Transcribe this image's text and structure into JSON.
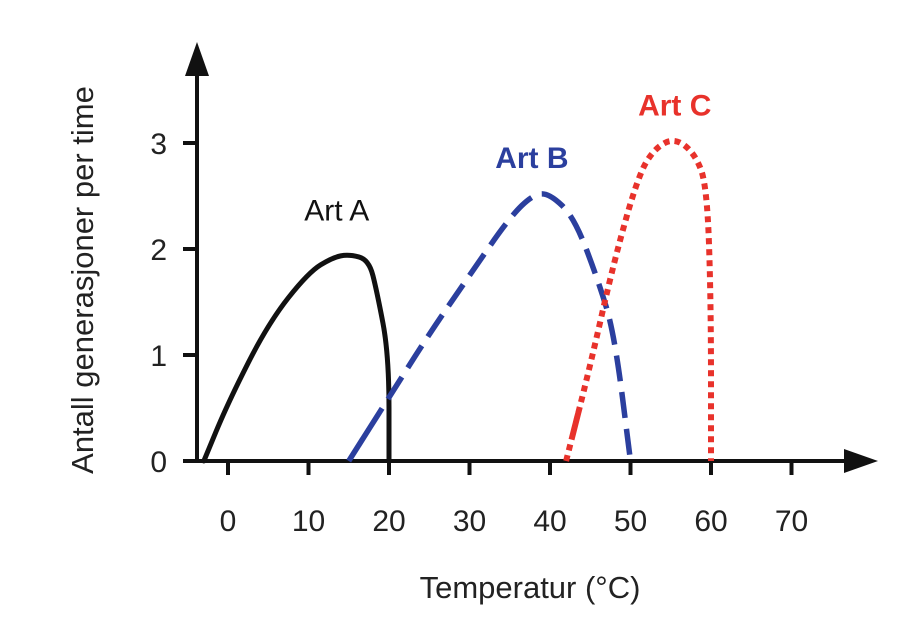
{
  "chart_data": {
    "type": "line",
    "xlabel": "Temperatur (°C)",
    "ylabel": "Antall generasjoner per time",
    "xlim": [
      -5,
      80
    ],
    "ylim": [
      0,
      3.6
    ],
    "xticks": [
      0,
      10,
      20,
      30,
      40,
      50,
      60,
      70
    ],
    "yticks": [
      0,
      1,
      2,
      3
    ],
    "grid": false,
    "series": [
      {
        "name": "Art A",
        "color": "#111111",
        "style": "solid",
        "points": [
          [
            -3,
            0
          ],
          [
            0,
            0.55
          ],
          [
            5,
            1.3
          ],
          [
            10,
            1.78
          ],
          [
            13,
            1.92
          ],
          [
            15,
            1.95
          ],
          [
            17.5,
            1.9
          ],
          [
            18.5,
            1.6
          ],
          [
            20,
            1.0
          ],
          [
            20,
            0
          ]
        ]
      },
      {
        "name": "Art B",
        "color": "#2b3f9e",
        "style": "dashed",
        "points": [
          [
            15,
            0
          ],
          [
            20,
            0.6
          ],
          [
            25,
            1.2
          ],
          [
            30,
            1.75
          ],
          [
            35,
            2.3
          ],
          [
            38,
            2.52
          ],
          [
            40,
            2.52
          ],
          [
            43,
            2.3
          ],
          [
            46,
            1.7
          ],
          [
            48,
            1.2
          ],
          [
            50,
            0
          ]
        ]
      },
      {
        "name": "Art C",
        "color": "#e8322b",
        "style": "dotted",
        "points": [
          [
            42,
            0
          ],
          [
            45,
            0.9
          ],
          [
            48,
            1.9
          ],
          [
            51,
            2.7
          ],
          [
            53,
            2.95
          ],
          [
            55.5,
            3.05
          ],
          [
            58,
            2.9
          ],
          [
            59.5,
            2.6
          ],
          [
            60,
            1.5
          ],
          [
            60,
            0
          ]
        ]
      }
    ]
  }
}
